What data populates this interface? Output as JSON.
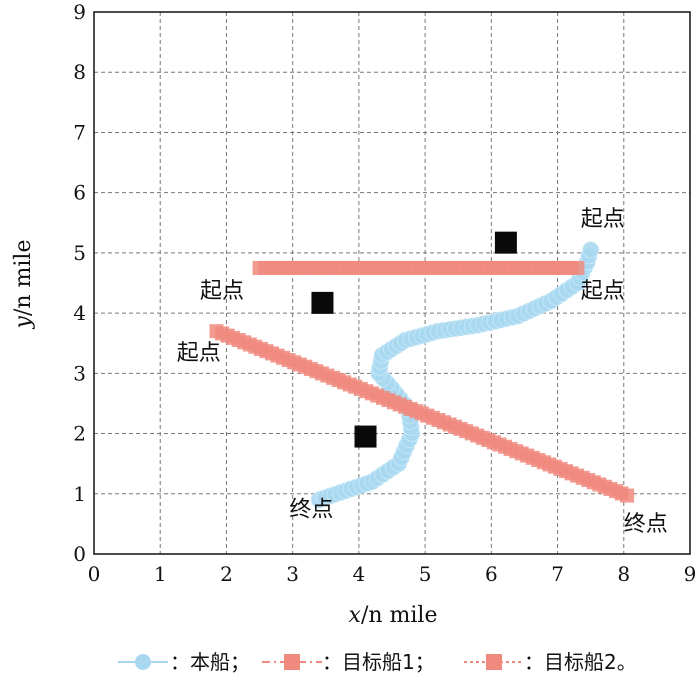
{
  "chart_data": {
    "type": "scatter",
    "xlabel_var": "x",
    "xlabel_unit": "/n mile",
    "ylabel_var": "y",
    "ylabel_unit": "/n mile",
    "xlim": [
      0,
      9
    ],
    "ylim": [
      0,
      9
    ],
    "x_ticks": [
      "0",
      "1",
      "2",
      "3",
      "4",
      "5",
      "6",
      "7",
      "8",
      "9"
    ],
    "y_ticks": [
      "0",
      "1",
      "2",
      "3",
      "4",
      "5",
      "6",
      "7",
      "8",
      "9"
    ],
    "grid": true,
    "series": [
      {
        "name": "本船",
        "color": "#a8d8ef",
        "marker": "circle",
        "points": [
          [
            3.4,
            0.9
          ],
          [
            3.8,
            1.05
          ],
          [
            4.2,
            1.2
          ],
          [
            4.6,
            1.5
          ],
          [
            4.8,
            2.0
          ],
          [
            4.75,
            2.4
          ],
          [
            4.5,
            2.75
          ],
          [
            4.3,
            3.0
          ],
          [
            4.35,
            3.3
          ],
          [
            4.7,
            3.55
          ],
          [
            5.2,
            3.7
          ],
          [
            5.8,
            3.8
          ],
          [
            6.4,
            3.95
          ],
          [
            6.9,
            4.2
          ],
          [
            7.3,
            4.5
          ],
          [
            7.45,
            4.85
          ],
          [
            7.5,
            5.05
          ]
        ]
      },
      {
        "name": "目标船1",
        "color": "#f08a7e",
        "marker": "square",
        "points": [
          [
            2.5,
            4.75
          ],
          [
            7.3,
            4.75
          ]
        ]
      },
      {
        "name": "目标船2",
        "color": "#f08a7e",
        "marker": "square",
        "points": [
          [
            1.85,
            3.7
          ],
          [
            8.05,
            0.97
          ]
        ]
      }
    ],
    "annotations": [
      {
        "text": "起点",
        "x": 7.35,
        "y": 5.45
      },
      {
        "text": "起点",
        "x": 7.35,
        "y": 4.25
      },
      {
        "text": "起点",
        "x": 1.6,
        "y": 4.25
      },
      {
        "text": "起点",
        "x": 1.25,
        "y": 3.22
      },
      {
        "text": "终点",
        "x": 2.95,
        "y": 0.62
      },
      {
        "text": "终点",
        "x": 8.0,
        "y": 0.38
      }
    ],
    "black_squares": [
      [
        6.22,
        5.17
      ],
      [
        3.45,
        4.17
      ],
      [
        4.1,
        1.95
      ]
    ],
    "legend": {
      "placement": "bottom",
      "items": [
        {
          "label": "：本船；",
          "series": 0
        },
        {
          "label": "：目标船1；",
          "series": 1
        },
        {
          "label": "：目标船2。",
          "series": 2
        }
      ]
    }
  }
}
